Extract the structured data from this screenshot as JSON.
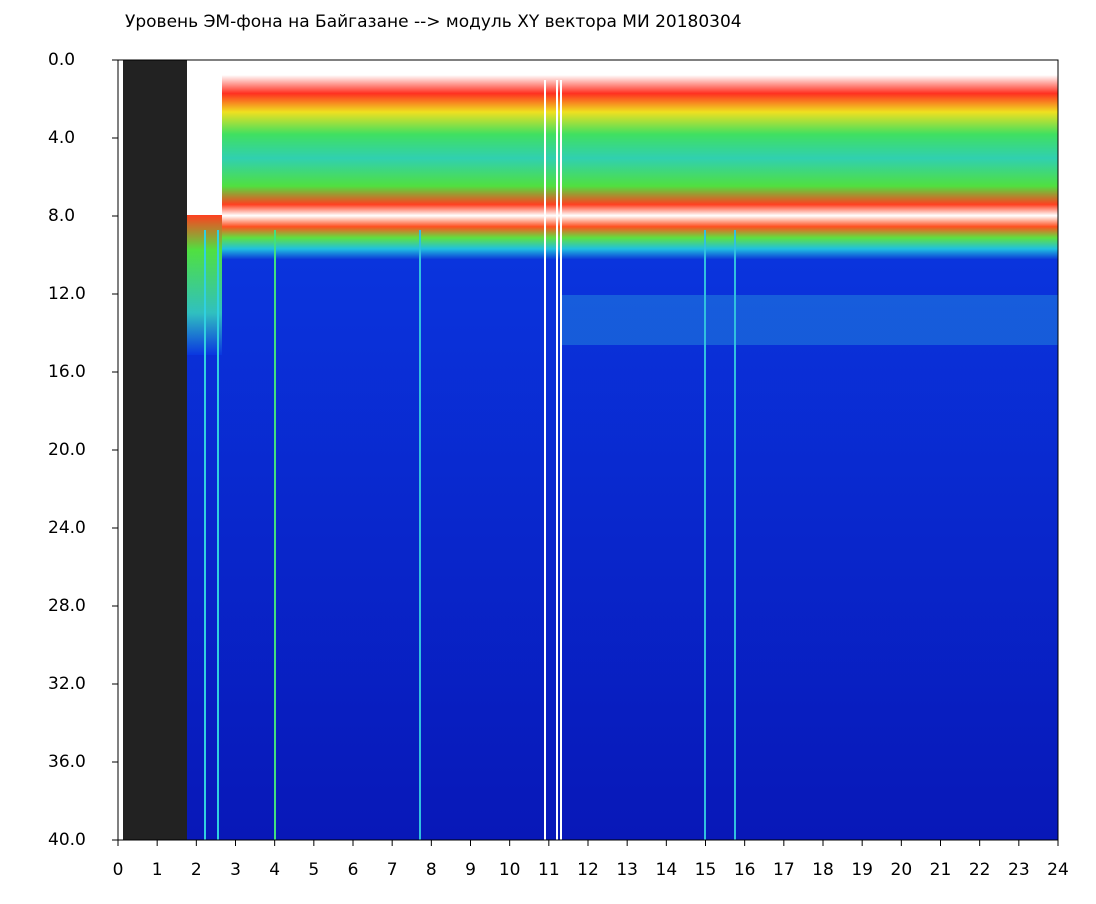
{
  "chart_data": {
    "type": "heatmap",
    "title": "Уровень ЭМ-фона на Байгазане  --> модуль XY вектора МИ  20180304",
    "xlim": [
      0,
      24
    ],
    "xticks": [
      0,
      1,
      2,
      3,
      4,
      5,
      6,
      7,
      8,
      9,
      10,
      11,
      12,
      13,
      14,
      15,
      16,
      17,
      18,
      19,
      20,
      21,
      22,
      23,
      24
    ],
    "ylim": [
      0,
      40
    ],
    "yinverted": true,
    "yticks": [
      {
        "value": 0,
        "label": "0.0"
      },
      {
        "value": 4,
        "label": "4.0"
      },
      {
        "value": 8,
        "label": "8.0"
      },
      {
        "value": 12,
        "label": "12.0"
      },
      {
        "value": 16,
        "label": "16.0"
      },
      {
        "value": 20,
        "label": "20.0"
      },
      {
        "value": 24,
        "label": "24.0"
      },
      {
        "value": 28,
        "label": "28.0"
      },
      {
        "value": 32,
        "label": "32.0"
      },
      {
        "value": 36,
        "label": "36.0"
      },
      {
        "value": 40,
        "label": "40.0"
      }
    ],
    "grid": false
  }
}
